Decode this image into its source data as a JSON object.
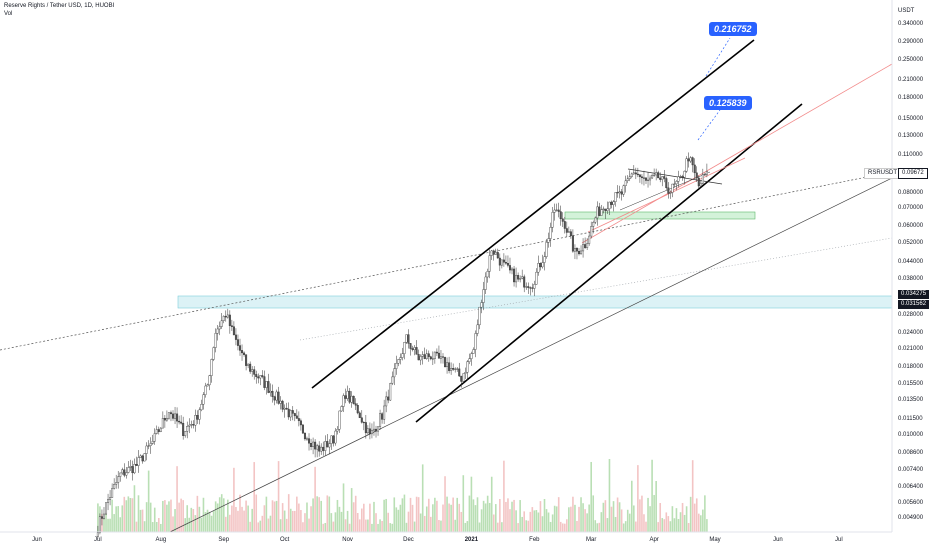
{
  "header": {
    "title": "Reserve Rights / Tether USD, 1D, HUOBI",
    "indicator": "Vol"
  },
  "axis_unit": "USDT",
  "symbol_tag": "RSRUSDT",
  "price_labels": [
    {
      "value": "0.09672",
      "style": "last"
    },
    {
      "value": "0.034275",
      "style": "zone"
    },
    {
      "value": "0.031562",
      "style": "zone"
    }
  ],
  "callouts": [
    "0.216752",
    "0.125839"
  ],
  "chart_data": {
    "type": "candlestick",
    "title": "Reserve Rights / Tether USD, 1D, HUOBI",
    "y_scale": "log",
    "ylim": [
      0.0044,
      0.42
    ],
    "y_ticks": [
      "0.340000",
      "0.290000",
      "0.250000",
      "0.210000",
      "0.180000",
      "0.150000",
      "0.130000",
      "0.110000",
      "0.080000",
      "0.070000",
      "0.060000",
      "0.052000",
      "0.044000",
      "0.038000",
      "0.028000",
      "0.024000",
      "0.021000",
      "0.018000",
      "0.015500",
      "0.013500",
      "0.011500",
      "0.010000",
      "0.008600",
      "0.007400",
      "0.006400",
      "0.005600",
      "0.004900"
    ],
    "x_ticks": [
      "Jun",
      "Jul",
      "Aug",
      "Sep",
      "Oct",
      "Nov",
      "Dec",
      "2021",
      "Feb",
      "Mar",
      "Apr",
      "May",
      "Jun",
      "Jul"
    ],
    "x_ticks_bold": [
      "2021"
    ],
    "price_path": [
      {
        "date": "2020-07-01",
        "close": 0.0046
      },
      {
        "date": "2020-07-06",
        "close": 0.0058
      },
      {
        "date": "2020-07-12",
        "close": 0.0072
      },
      {
        "date": "2020-07-20",
        "close": 0.0078
      },
      {
        "date": "2020-07-28",
        "close": 0.0095
      },
      {
        "date": "2020-08-05",
        "close": 0.0125
      },
      {
        "date": "2020-08-12",
        "close": 0.0105
      },
      {
        "date": "2020-08-18",
        "close": 0.0115
      },
      {
        "date": "2020-08-24",
        "close": 0.0155
      },
      {
        "date": "2020-08-28",
        "close": 0.0245
      },
      {
        "date": "2020-09-02",
        "close": 0.0285
      },
      {
        "date": "2020-09-06",
        "close": 0.0235
      },
      {
        "date": "2020-09-12",
        "close": 0.0185
      },
      {
        "date": "2020-09-22",
        "close": 0.0155
      },
      {
        "date": "2020-10-02",
        "close": 0.0125
      },
      {
        "date": "2020-10-10",
        "close": 0.0105
      },
      {
        "date": "2020-10-18",
        "close": 0.0088
      },
      {
        "date": "2020-10-25",
        "close": 0.0098
      },
      {
        "date": "2020-10-31",
        "close": 0.0145
      },
      {
        "date": "2020-11-06",
        "close": 0.0125
      },
      {
        "date": "2020-11-12",
        "close": 0.01
      },
      {
        "date": "2020-11-18",
        "close": 0.012
      },
      {
        "date": "2020-11-24",
        "close": 0.017
      },
      {
        "date": "2020-11-30",
        "close": 0.023
      },
      {
        "date": "2020-12-06",
        "close": 0.0195
      },
      {
        "date": "2020-12-12",
        "close": 0.02
      },
      {
        "date": "2020-12-20",
        "close": 0.0185
      },
      {
        "date": "2020-12-27",
        "close": 0.0165
      },
      {
        "date": "2021-01-02",
        "close": 0.021
      },
      {
        "date": "2021-01-06",
        "close": 0.033
      },
      {
        "date": "2021-01-11",
        "close": 0.05
      },
      {
        "date": "2021-01-17",
        "close": 0.043
      },
      {
        "date": "2021-01-24",
        "close": 0.038
      },
      {
        "date": "2021-01-31",
        "close": 0.037
      },
      {
        "date": "2021-02-06",
        "close": 0.048
      },
      {
        "date": "2021-02-11",
        "close": 0.07
      },
      {
        "date": "2021-02-16",
        "close": 0.062
      },
      {
        "date": "2021-02-21",
        "close": 0.048
      },
      {
        "date": "2021-02-26",
        "close": 0.052
      },
      {
        "date": "2021-03-04",
        "close": 0.068
      },
      {
        "date": "2021-03-10",
        "close": 0.075
      },
      {
        "date": "2021-03-16",
        "close": 0.08
      },
      {
        "date": "2021-03-22",
        "close": 0.097
      },
      {
        "date": "2021-03-28",
        "close": 0.088
      },
      {
        "date": "2021-04-03",
        "close": 0.092
      },
      {
        "date": "2021-04-09",
        "close": 0.082
      },
      {
        "date": "2021-04-14",
        "close": 0.09
      },
      {
        "date": "2021-04-18",
        "close": 0.11
      },
      {
        "date": "2021-04-23",
        "close": 0.085
      },
      {
        "date": "2021-04-27",
        "close": 0.0967
      }
    ]
  },
  "colors": {
    "up": "#26a69a",
    "down": "#555555",
    "vol_up": "#b9dfb4",
    "vol_down": "#f3c4c4",
    "callout": "#2962ff",
    "zone": "#bfe8ef",
    "zone_green": "#c8efcf",
    "red_line": "#f28b8b"
  }
}
